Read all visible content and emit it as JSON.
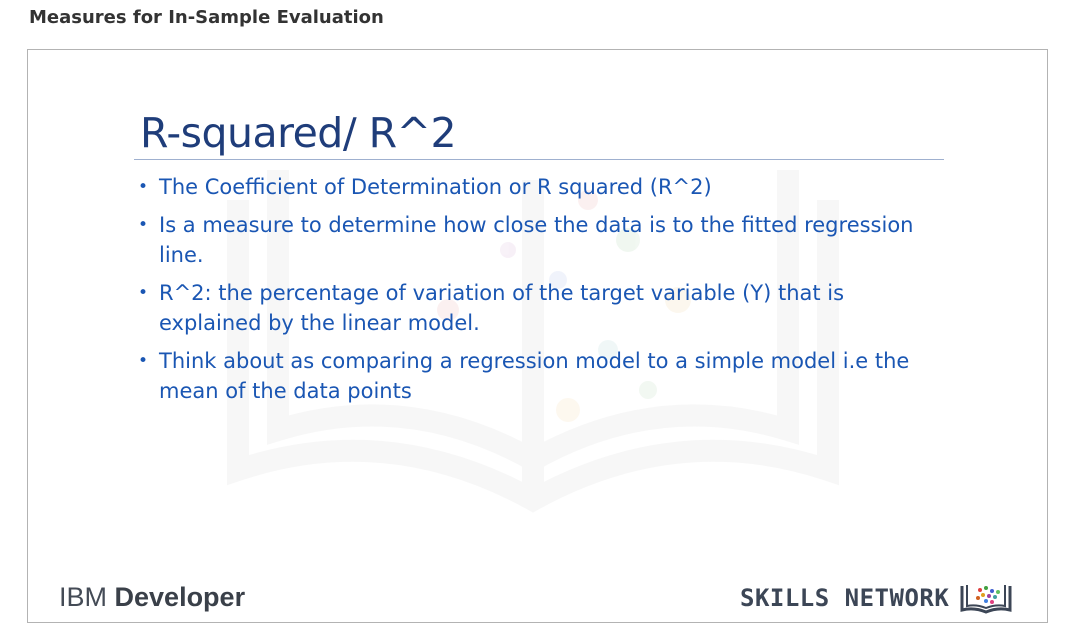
{
  "page": {
    "heading": "Measures for In-Sample Evaluation"
  },
  "slide": {
    "title": "R-squared/ R^2",
    "bullets": [
      "The Coefficient of Determination or R squared (R^2)",
      "Is a measure to determine how close the data is to the fitted regression line.",
      "R^2: the percentage of variation of the target variable (Y) that is explained by the linear model.",
      "Think about as comparing a regression model to a simple model i.e the mean of the data points"
    ],
    "bullet_glyph": "•",
    "footer": {
      "ibm_prefix": "IBM ",
      "ibm_strong": "Developer",
      "skills_network": "SKILLS NETWORK",
      "skills_icon": "book-icon"
    }
  },
  "colors": {
    "title": "#1f3d7a",
    "bullet_text": "#1a56b3",
    "heading": "#333333"
  }
}
